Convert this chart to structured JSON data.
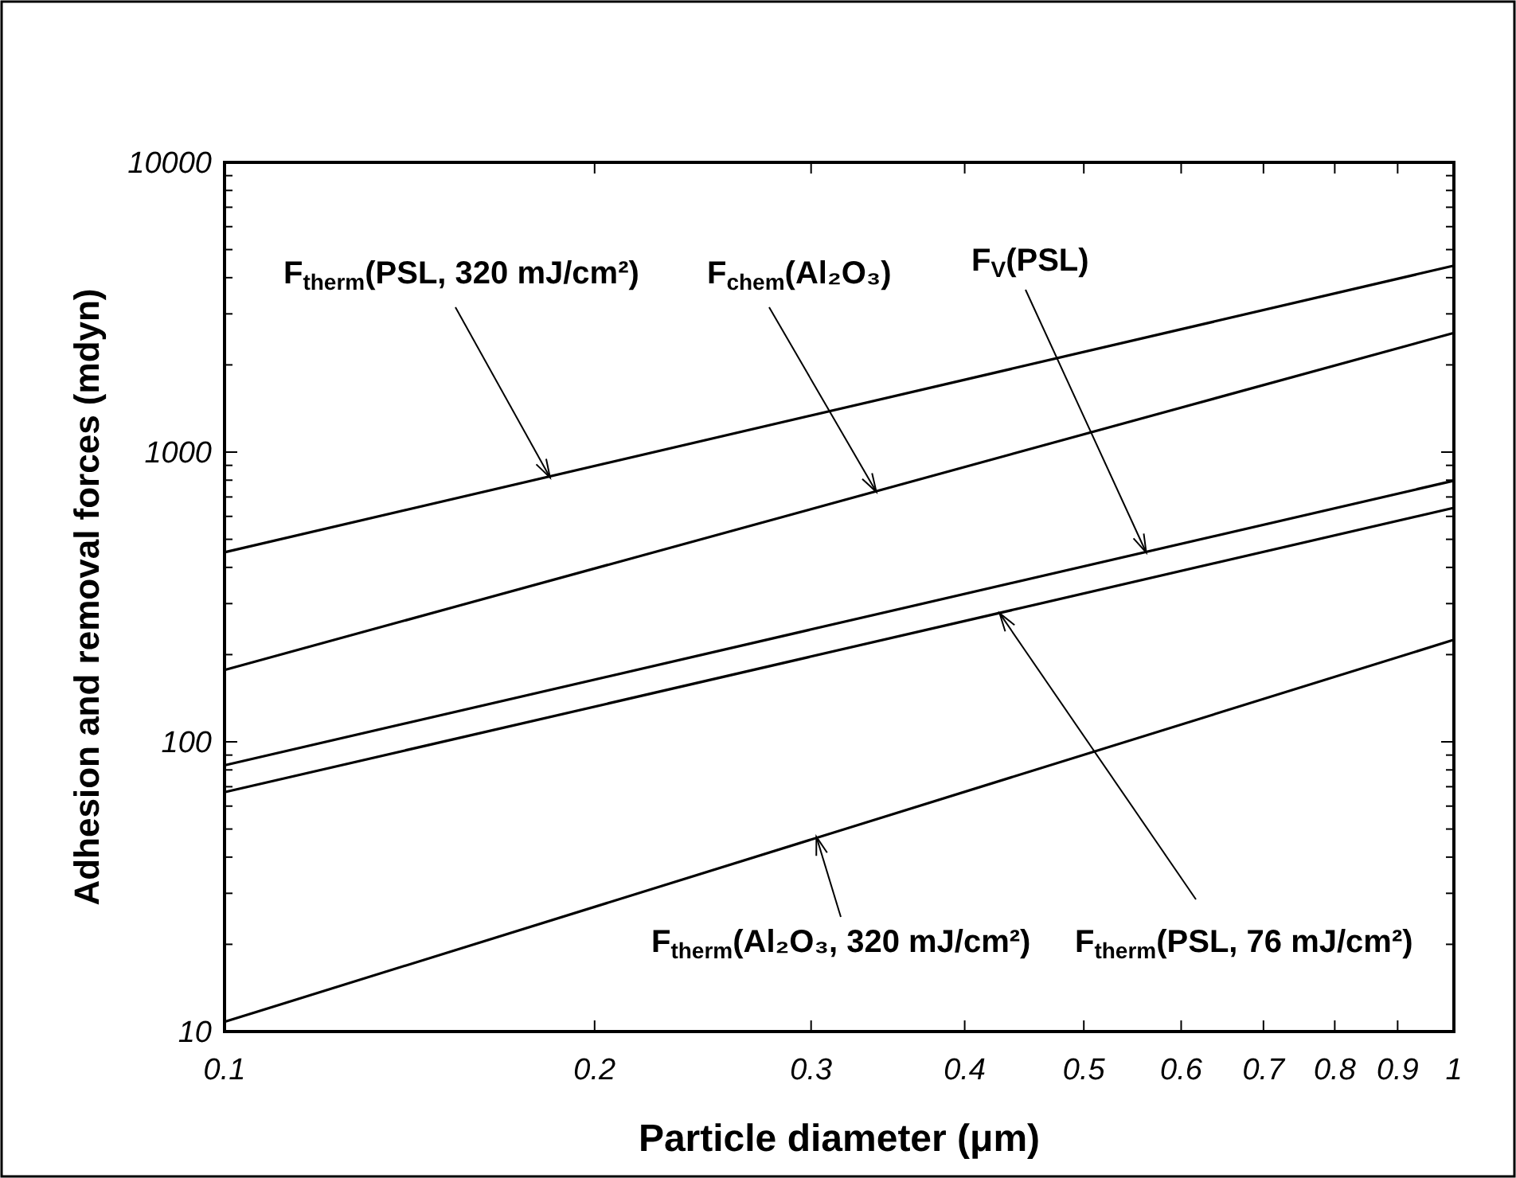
{
  "chart_data": {
    "type": "line",
    "xlabel": "Particle diameter (μm)",
    "ylabel": "Adhesion and removal forces (mdyn)",
    "log": "xy",
    "xlim": [
      0.1,
      1
    ],
    "ylim": [
      10,
      10000
    ],
    "xticks": [
      0.1,
      0.2,
      0.3,
      0.4,
      0.5,
      0.6,
      0.7,
      0.8,
      0.9,
      1
    ],
    "yticks": [
      10,
      {
        "value": 20,
        "label": null
      },
      {
        "value": 30,
        "label": null
      },
      {
        "value": 40,
        "label": null
      },
      {
        "value": 50,
        "label": null
      },
      {
        "value": 60,
        "label": null
      },
      {
        "value": 70,
        "label": null
      },
      {
        "value": 80,
        "label": null
      },
      {
        "value": 90,
        "label": null
      },
      100,
      {
        "value": 200,
        "label": null
      },
      {
        "value": 300,
        "label": null
      },
      {
        "value": 400,
        "label": null
      },
      {
        "value": 500,
        "label": null
      },
      {
        "value": 600,
        "label": null
      },
      {
        "value": 700,
        "label": null
      },
      {
        "value": 800,
        "label": null
      },
      {
        "value": 900,
        "label": null
      },
      1000,
      {
        "value": 2000,
        "label": null
      },
      {
        "value": 3000,
        "label": null
      },
      {
        "value": 4000,
        "label": null
      },
      {
        "value": 5000,
        "label": null
      },
      {
        "value": 6000,
        "label": null
      },
      {
        "value": 7000,
        "label": null
      },
      {
        "value": 8000,
        "label": null
      },
      {
        "value": 9000,
        "label": null
      },
      10000
    ],
    "grid": false,
    "marker": "none",
    "line_style": "solid",
    "x": [
      0.1,
      1
    ],
    "series": [
      {
        "color": "#000000",
        "values": [
          451,
          4400
        ]
      },
      {
        "color": "#000000",
        "values": [
          177,
          2580
        ]
      },
      {
        "color": "#000000",
        "values": [
          83,
          797
        ]
      },
      {
        "color": "#000000",
        "values": [
          67,
          642
        ]
      },
      {
        "color": "#000000",
        "values": [
          10.8,
          225
        ]
      }
    ],
    "annotations": [
      {
        "text": "F$_{therm}$(PSL, 320 mJ/cm²)",
        "x": 0.184,
        "y": 817
      },
      {
        "text": "F$_{chem}$(Al₂O₃)",
        "x": 0.339,
        "y": 729
      },
      {
        "text": "F$_{V}$(PSL)",
        "x": 0.562,
        "y": 450
      },
      {
        "text": "F$_{therm}$(PSL, 76 mJ/cm²)",
        "x": 0.427,
        "y": 278
      },
      {
        "text": "F$_{therm}$(Al₂O₃, 320 mJ/cm²)",
        "x": 0.303,
        "y": 47
      }
    ]
  }
}
